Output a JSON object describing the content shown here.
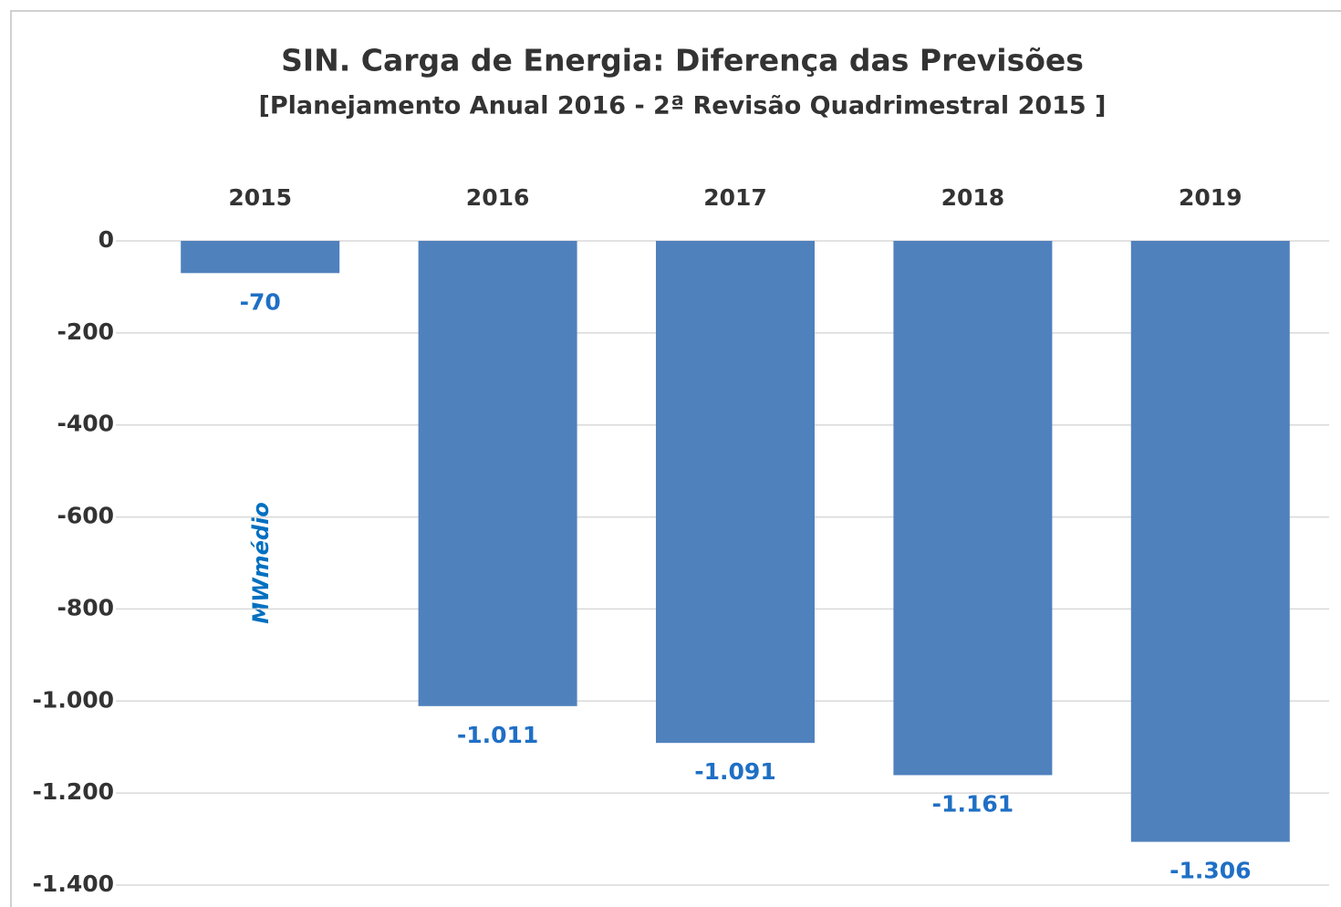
{
  "chart_data": {
    "type": "bar",
    "title": "SIN. Carga de Energia: Diferença das Previsões",
    "subtitle": "[Planejamento  Anual 2016 - 2ª Revisão Quadrimestral  2015 ]",
    "y_axis_label": "MWmédio",
    "categories": [
      "2015",
      "2016",
      "2017",
      "2018",
      "2019"
    ],
    "values": [
      -70,
      -1011,
      -1091,
      -1161,
      -1306
    ],
    "value_labels": [
      "-70",
      "-1.011",
      "-1.091",
      "-1.161",
      "-1.306"
    ],
    "color": "#4f81bd",
    "ylim": [
      -1400,
      0
    ],
    "yticks": [
      0,
      -200,
      -400,
      -600,
      -800,
      {
        "value": -1000,
        "label": "-1.000"
      },
      {
        "value": -1200,
        "label": "-1.200"
      },
      {
        "value": -1400,
        "label": "-1.400"
      }
    ],
    "grid": true
  }
}
